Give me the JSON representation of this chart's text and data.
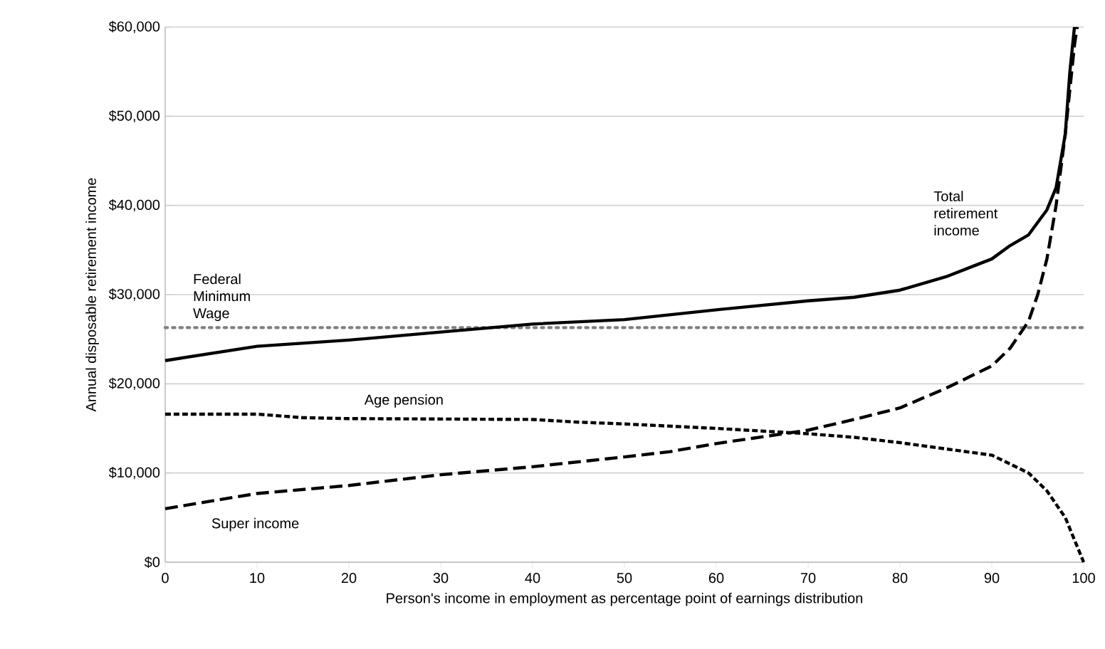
{
  "chart_data": {
    "type": "line",
    "xlabel": "Person's income in employment as percentage point of earnings distribution",
    "ylabel": "Annual disposable retirement income",
    "xlim": [
      0,
      100
    ],
    "xticks": [
      0,
      10,
      20,
      30,
      40,
      50,
      60,
      70,
      80,
      90,
      100
    ],
    "ylim": [
      0,
      60000
    ],
    "yticks": [
      {
        "value": 0,
        "label": "$0"
      },
      {
        "value": 10000,
        "label": "$10,000"
      },
      {
        "value": 20000,
        "label": "$20,000"
      },
      {
        "value": 30000,
        "label": "$30,000"
      },
      {
        "value": 40000,
        "label": "$40,000"
      },
      {
        "value": 50000,
        "label": "$50,000"
      },
      {
        "value": 60000,
        "label": "$60,000"
      }
    ],
    "grid": "y",
    "marker": "none",
    "series": [
      {
        "name": "Total retirement income",
        "color": "#000000",
        "line_style": "solid",
        "x": [
          0,
          10,
          20,
          30,
          40,
          50,
          60,
          70,
          75,
          80,
          85,
          88,
          90,
          92,
          94,
          96,
          97,
          98,
          98.5,
          99
        ],
        "values": [
          22600,
          24200,
          24900,
          25800,
          26700,
          27200,
          28300,
          29300,
          29700,
          30500,
          32000,
          33200,
          34000,
          35500,
          36700,
          39500,
          42000,
          48000,
          55000,
          60000
        ]
      },
      {
        "name": "Age pension",
        "color": "#000000",
        "line_style": "dashed",
        "x": [
          0,
          10,
          15,
          20,
          40,
          45,
          50,
          60,
          65,
          70,
          75,
          80,
          85,
          90,
          92,
          94,
          96,
          98,
          99,
          100
        ],
        "values": [
          16600,
          16600,
          16200,
          16100,
          16000,
          15700,
          15500,
          15000,
          14700,
          14400,
          14000,
          13400,
          12700,
          12000,
          11000,
          10000,
          8000,
          5000,
          2500,
          0
        ]
      },
      {
        "name": "Super income",
        "color": "#000000",
        "line_style": "dashed",
        "x": [
          0,
          10,
          20,
          30,
          40,
          50,
          55,
          60,
          70,
          75,
          80,
          85,
          90,
          92,
          94,
          95,
          96,
          97,
          98,
          99,
          99.3
        ],
        "values": [
          6000,
          7700,
          8600,
          9800,
          10700,
          11800,
          12400,
          13300,
          14800,
          16000,
          17300,
          19500,
          22000,
          24000,
          27000,
          30000,
          34000,
          40000,
          48000,
          58000,
          60000
        ]
      }
    ],
    "ref_lines": [
      {
        "axis": "y",
        "value": 26300,
        "label": "Federal Minimum Wage",
        "color": "#808080",
        "line_style": "dotted"
      }
    ]
  }
}
